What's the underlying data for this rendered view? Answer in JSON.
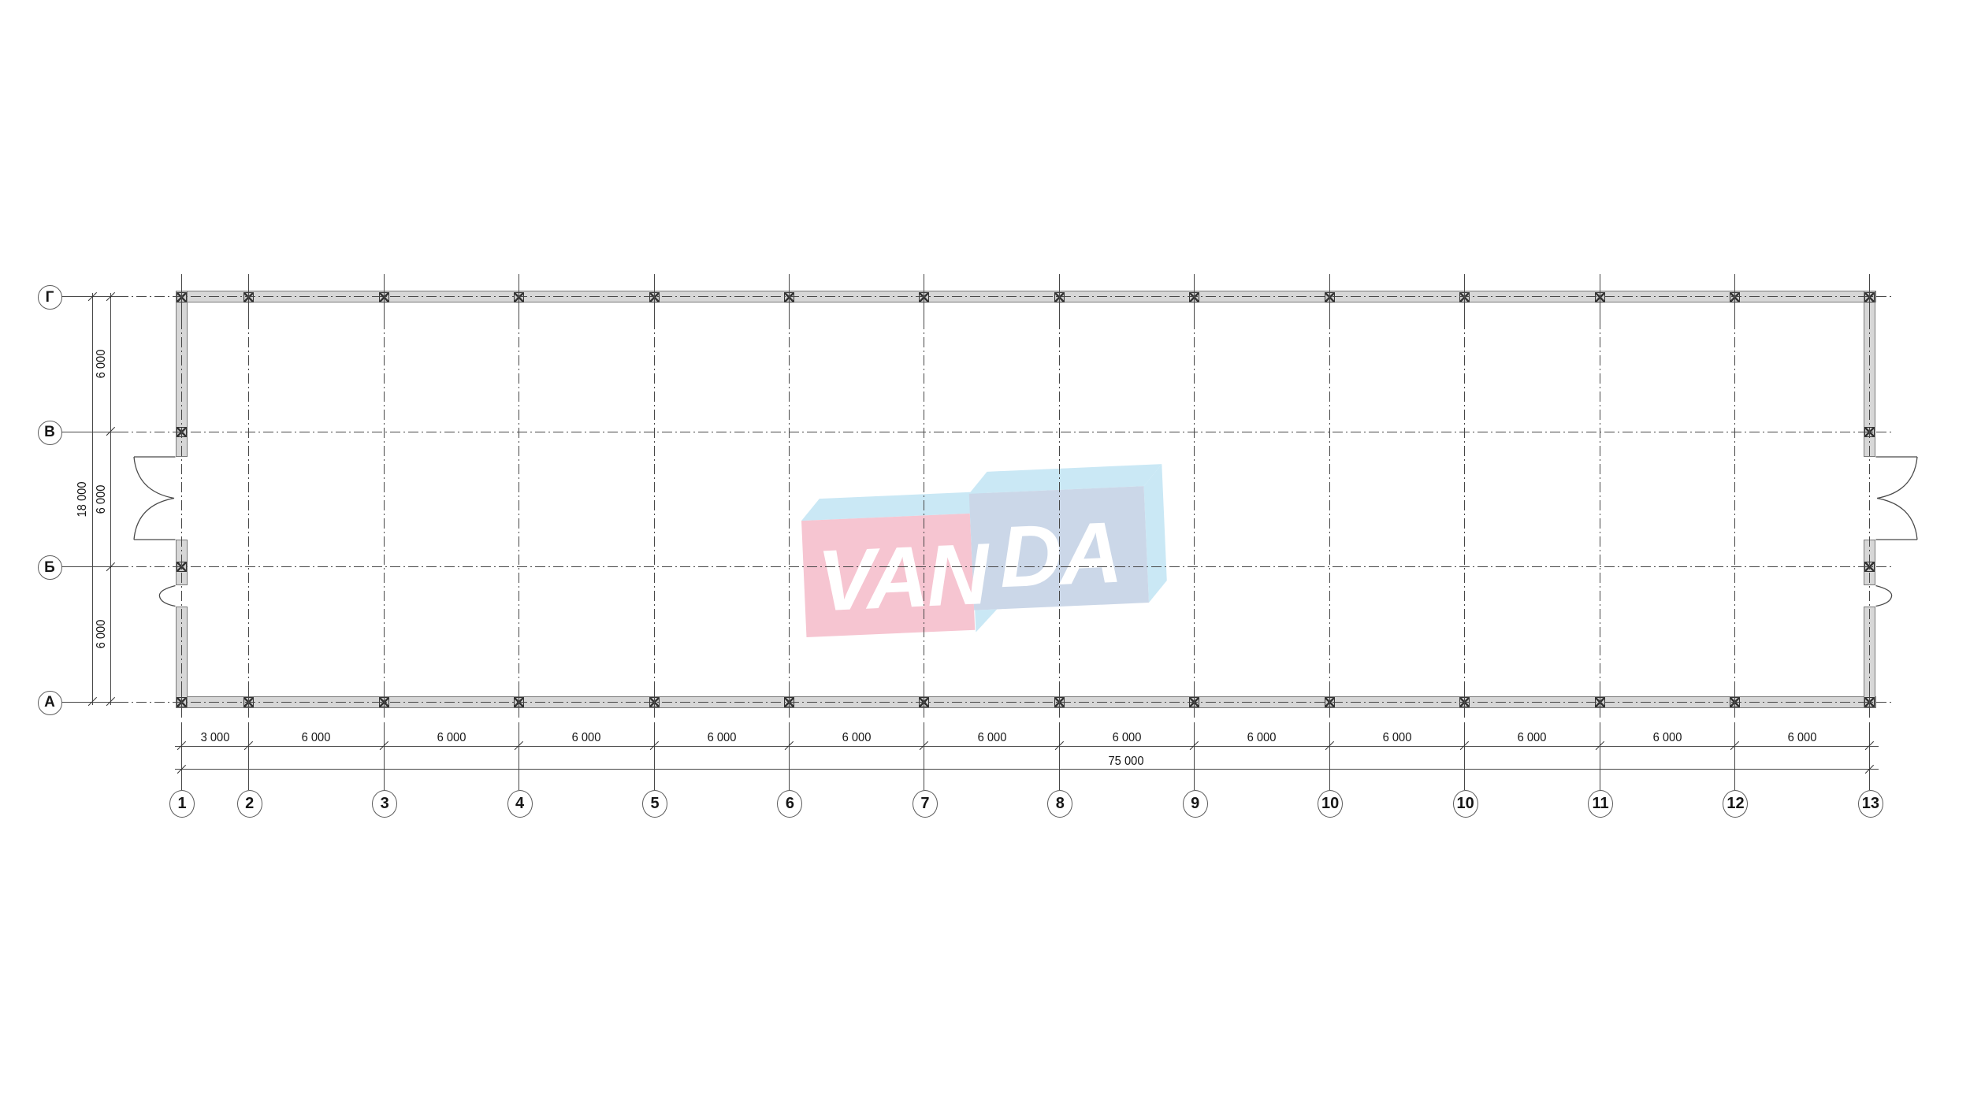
{
  "watermark": {
    "full_text": "VANDA",
    "left_text": "VAN",
    "right_text": "DA",
    "pink": "#f6c5d1",
    "sky_blue": "#cae8f5",
    "steel_blue": "#cbd7e8"
  },
  "plan": {
    "columns": [
      {
        "label": "1",
        "mm": 0
      },
      {
        "label": "2",
        "mm": 3000
      },
      {
        "label": "3",
        "mm": 9000
      },
      {
        "label": "4",
        "mm": 15000
      },
      {
        "label": "5",
        "mm": 21000
      },
      {
        "label": "6",
        "mm": 27000
      },
      {
        "label": "7",
        "mm": 33000
      },
      {
        "label": "8",
        "mm": 39000
      },
      {
        "label": "9",
        "mm": 45000
      },
      {
        "label": "10",
        "mm": 51000
      },
      {
        "label": "10",
        "mm": 57000
      },
      {
        "label": "11",
        "mm": 63000
      },
      {
        "label": "12",
        "mm": 69000
      },
      {
        "label": "13",
        "mm": 75000
      }
    ],
    "rows": [
      {
        "label": "Г",
        "mm": 0
      },
      {
        "label": "В",
        "mm": 6000
      },
      {
        "label": "Б",
        "mm": 12000
      },
      {
        "label": "А",
        "mm": 18000
      }
    ],
    "bottom_bay_labels": [
      "3 000",
      "6 000",
      "6 000",
      "6 000",
      "6 000",
      "6 000",
      "6 000",
      "6 000",
      "6 000",
      "6 000",
      "6 000",
      "6 000",
      "6 000"
    ],
    "bottom_total_label": "75 000",
    "left_bay_labels": [
      "6 000",
      "6 000",
      "6 000"
    ],
    "left_total_label": "18 000",
    "line_color": "#474747",
    "wall_fill": "#d7d7d7"
  }
}
